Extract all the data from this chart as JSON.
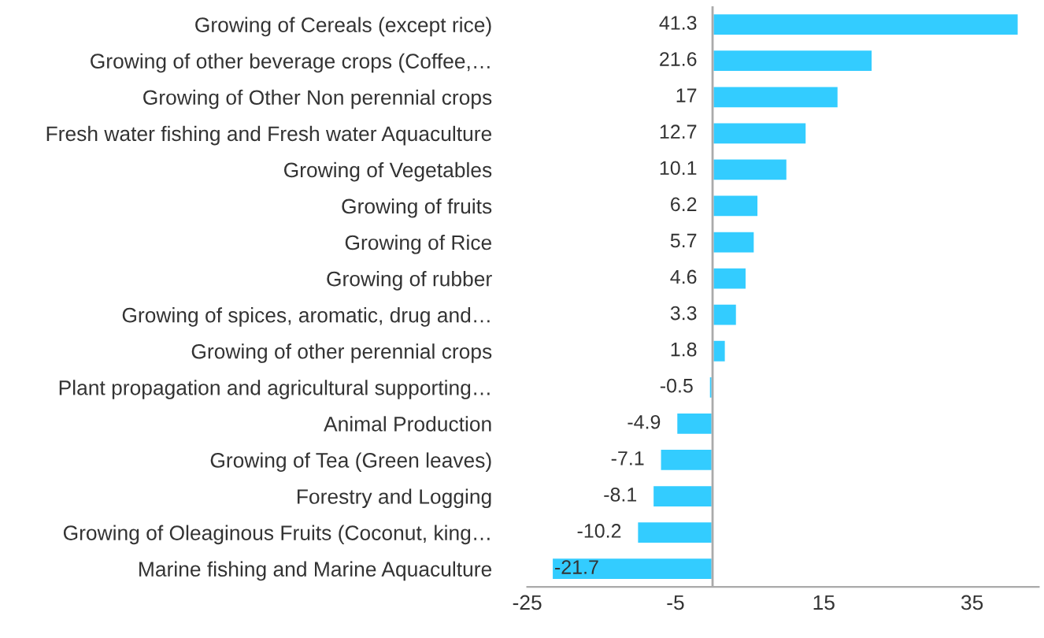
{
  "chart_data": {
    "type": "bar",
    "orientation": "horizontal",
    "categories": [
      "Growing of Cereals (except rice)",
      "Growing of other beverage crops (Coffee,…",
      "Growing of Other Non perennial crops",
      "Fresh water fishing and Fresh water Aquaculture",
      "Growing of Vegetables",
      "Growing of fruits",
      "Growing of Rice",
      "Growing of rubber",
      "Growing of spices, aromatic, drug and…",
      "Growing of other perennial crops",
      "Plant propagation and agricultural supporting…",
      "Animal Production",
      "Growing of Tea (Green leaves)",
      "Forestry and Logging",
      "Growing of Oleaginous Fruits (Coconut, king…",
      "Marine fishing and Marine Aquaculture"
    ],
    "values": [
      41.3,
      21.6,
      17,
      12.7,
      10.1,
      6.2,
      5.7,
      4.6,
      3.3,
      1.8,
      -0.5,
      -4.9,
      -7.1,
      -8.1,
      -10.2,
      -21.7
    ],
    "color": "#33ccff",
    "data_labels": true,
    "xlim": [
      -25,
      44
    ],
    "xticks": [
      -25,
      -5,
      15,
      35
    ],
    "grid": false,
    "legend": false
  }
}
